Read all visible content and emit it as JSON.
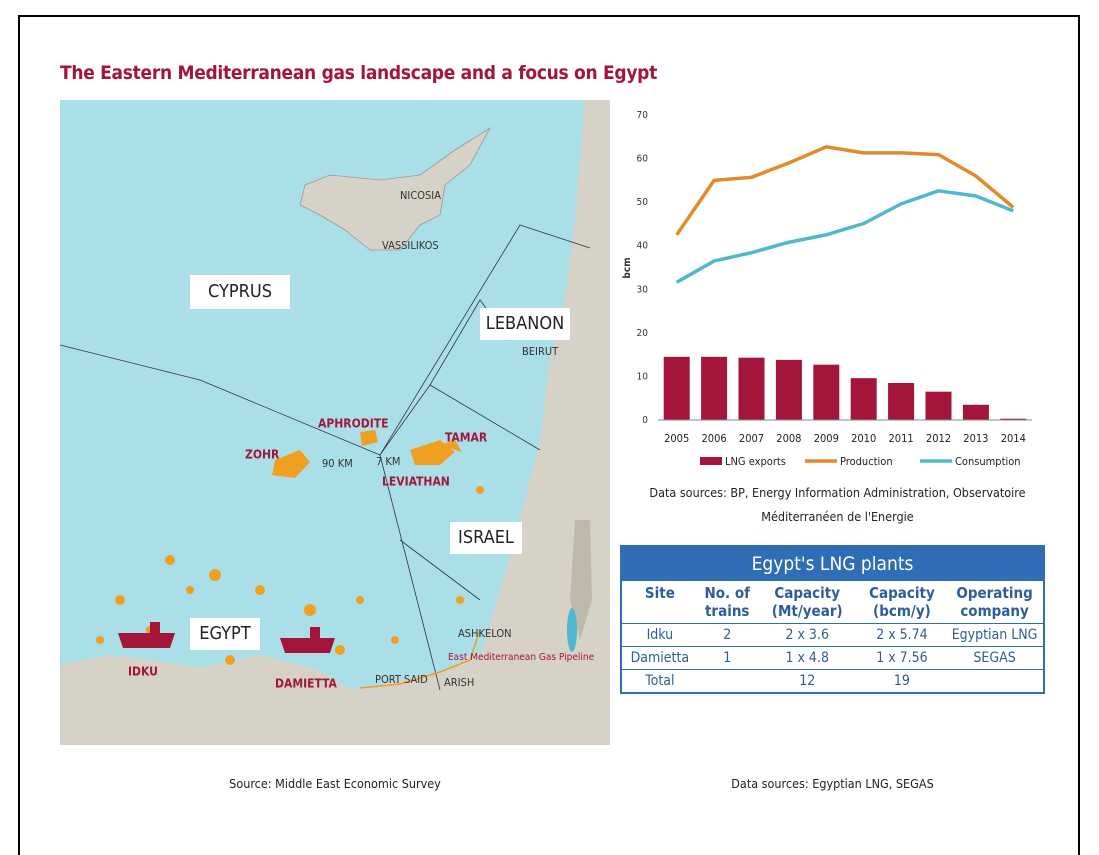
{
  "title": "The Eastern Mediterranean gas landscape and a focus on Egypt",
  "map": {
    "countries": [
      "CYPRUS",
      "LEBANON",
      "ISRAEL",
      "EGYPT"
    ],
    "cities": [
      "NICOSIA",
      "VASSILIKOS",
      "BEIRUT",
      "ASHKELON",
      "PORT SAID",
      "ARISH",
      "IDKU",
      "DAMIETTA"
    ],
    "fields": [
      "APHRODITE",
      "ZOHR",
      "TAMAR",
      "LEVIATHAN"
    ],
    "distances": [
      "90 KM",
      "7 KM"
    ],
    "pipeline": "East Mediterranean Gas Pipeline",
    "source": "Source: Middle East Economic Survey"
  },
  "chart_data": {
    "type": "bar-line",
    "y_label": "bcm",
    "categories": [
      "2005",
      "2006",
      "2007",
      "2008",
      "2009",
      "2010",
      "2011",
      "2012",
      "2013",
      "2014"
    ],
    "series": [
      {
        "name": "LNG exports",
        "kind": "bar",
        "color": "#a3163a",
        "values": [
          14.5,
          14.5,
          14.3,
          13.8,
          12.7,
          9.6,
          8.5,
          6.5,
          3.5,
          0.3
        ]
      },
      {
        "name": "Production",
        "kind": "line",
        "color": "#e08a2a",
        "values": [
          42.5,
          55,
          55.7,
          59,
          62.7,
          61.3,
          61.3,
          60.9,
          56,
          48.8
        ]
      },
      {
        "name": "Consumption",
        "kind": "line",
        "color": "#4fb8cc",
        "values": [
          31.6,
          36.5,
          38.4,
          40.8,
          42.5,
          45.1,
          49.6,
          52.6,
          51.4,
          48
        ]
      }
    ],
    "ylim": [
      0,
      70
    ],
    "yticks": [
      0,
      10,
      20,
      30,
      40,
      50,
      60,
      70
    ],
    "legend": "bottom",
    "source": "Data sources: BP, Energy Information Administration, Observatoire Méditerranéen de l'Energie"
  },
  "table": {
    "title": "Egypt's LNG plants",
    "header": [
      "Site",
      "No. of trains",
      "Capacity (Mt/year)",
      "Capacity (bcm/y)",
      "Operating company"
    ],
    "rows": [
      [
        "Idku",
        "2",
        "2 x 3.6",
        "2 x 5.74",
        "Egyptian LNG"
      ],
      [
        "Damietta",
        "1",
        "1 x 4.8",
        "1 x 7.56",
        "SEGAS"
      ]
    ],
    "total": {
      "label": "Total",
      "capacity_mt": "12",
      "capacity_bcm": "19"
    },
    "source": "Data sources: Egyptian LNG, SEGAS"
  }
}
